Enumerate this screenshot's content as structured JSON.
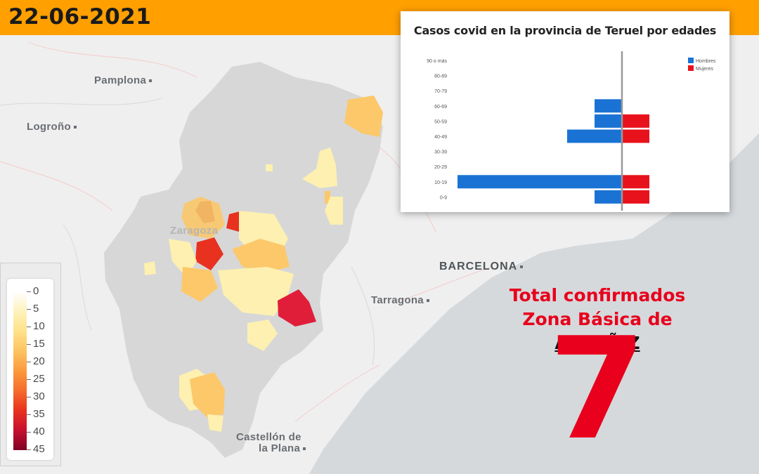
{
  "header": {
    "date": "22-06-2021"
  },
  "map": {
    "cities": [
      {
        "name": "Pamplona"
      },
      {
        "name": "Logroño"
      },
      {
        "name": "Zaragoza"
      },
      {
        "name": "BARCELONA"
      },
      {
        "name": "Tarragona"
      },
      {
        "name": "Castellón de"
      },
      {
        "name": "la Plana"
      }
    ],
    "legend": {
      "labels": [
        "0",
        "5",
        "10",
        "15",
        "20",
        "25",
        "30",
        "35",
        "40",
        "45"
      ]
    }
  },
  "chart_data": {
    "type": "bar",
    "title": "Casos covid en la provincia de Teruel por edades",
    "categories": [
      "90 o más",
      "80-89",
      "70-79",
      "60-69",
      "50-59",
      "40-49",
      "30-39",
      "20-29",
      "10-19",
      "0-9"
    ],
    "series": [
      {
        "name": "Hombres",
        "color": "#1a73d4",
        "values": [
          0,
          0,
          0,
          1,
          1,
          2,
          0,
          0,
          6,
          1
        ]
      },
      {
        "name": "Mujeres",
        "color": "#e8121c",
        "values": [
          0,
          0,
          0,
          0,
          1,
          1,
          0,
          0,
          1,
          1
        ]
      }
    ],
    "legend_position": "top-right"
  },
  "total": {
    "line1": "Total confirmados",
    "line2_prefix": "Zona Básica de ",
    "zone": "ALCAÑIZ",
    "value": "7"
  }
}
